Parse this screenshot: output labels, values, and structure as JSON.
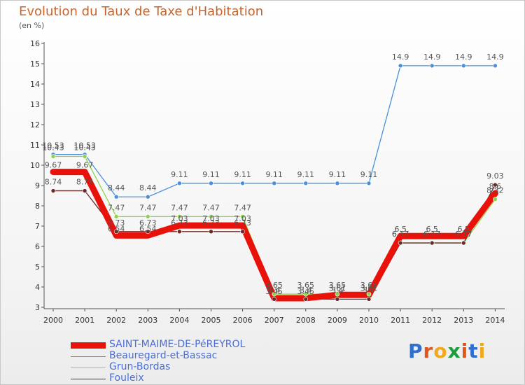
{
  "header": {
    "title": "Evolution du Taux de Taxe d'Habitation",
    "subtitle": "(en %)"
  },
  "brand": {
    "text": "Proxiti",
    "letters": [
      "P",
      "r",
      "o",
      "x",
      "i",
      "t",
      "i"
    ],
    "colors": [
      "#2e6fd0",
      "#e0561c",
      "#f0a81c",
      "#1f9a3c",
      "#e0561c",
      "#2e6fd0",
      "#f0a81c"
    ]
  },
  "chart_data": {
    "type": "line",
    "title": "Evolution du Taux de Taxe d'Habitation",
    "subtitle": "(en %)",
    "xlabel": "",
    "ylabel": "",
    "ylim": [
      3,
      16
    ],
    "grid": false,
    "legend_position": "bottom-left",
    "x": [
      "2000",
      "2001",
      "2002",
      "2003",
      "2004",
      "2005",
      "2006",
      "2007",
      "2008",
      "2009",
      "2010",
      "2011",
      "2012",
      "2013",
      "2014"
    ],
    "y_ticks": [
      "3",
      "4",
      "5",
      "6",
      "7",
      "8",
      "9",
      "10",
      "11",
      "12",
      "13",
      "14",
      "15",
      "16"
    ],
    "series": [
      {
        "name": "SAINT-MAIME-DE-PéREYROL",
        "color": "#e8120a",
        "values": [
          9.67,
          9.67,
          6.54,
          6.54,
          7.03,
          7.03,
          7.03,
          3.45,
          3.45,
          3.61,
          3.61,
          6.51,
          6.51,
          6.51,
          8.62
        ],
        "labels": [
          "9.67",
          "9.67",
          "6.54",
          "6.54",
          "7.03",
          "7.03",
          "7.03",
          "3.45",
          "3.45",
          "3.61",
          "3.61",
          "6.5",
          "6.5",
          "6.5",
          "8.6"
        ]
      },
      {
        "name": "Beauregard-et-Bassac",
        "color": "#4a90d9",
        "values": [
          10.53,
          10.53,
          8.44,
          8.44,
          9.11,
          9.11,
          9.11,
          9.11,
          9.11,
          9.11,
          9.11,
          14.9,
          14.9,
          14.9,
          14.9
        ],
        "labels": [
          "10.53",
          "10.53",
          "8.44",
          "8.44",
          "9.11",
          "9.11",
          "9.11",
          "9.11",
          "9.11",
          "9.11",
          "9.11",
          "14.9",
          "14.9",
          "14.9",
          "14.9"
        ]
      },
      {
        "name": "Grun-Bordas",
        "color": "#8ed44a",
        "values": [
          10.43,
          10.43,
          7.47,
          7.47,
          7.47,
          7.47,
          7.47,
          3.65,
          3.65,
          3.65,
          3.65,
          6.17,
          6.17,
          6.17,
          8.32
        ],
        "labels": [
          "10.43",
          "10.43",
          "7.47",
          "7.47",
          "7.47",
          "7.47",
          "7.47",
          "3.65",
          "3.65",
          "3.65",
          "3.65",
          "6.17",
          "6.17",
          "6.17",
          "8.32"
        ]
      },
      {
        "name": "Fouleix",
        "color": "#6b2a2a",
        "values": [
          8.74,
          8.74,
          6.73,
          6.73,
          6.73,
          6.73,
          6.73,
          3.4,
          3.4,
          3.4,
          3.4,
          6.17,
          6.17,
          6.17,
          9.03
        ],
        "labels": [
          "8.74",
          "8.74",
          "6.73",
          "6.73",
          "6.73",
          "6.73",
          "6.73",
          "3.4",
          "3.4",
          "3.4",
          "3.4",
          "6.17",
          "6.17",
          "6.17",
          "9.03"
        ]
      }
    ]
  }
}
